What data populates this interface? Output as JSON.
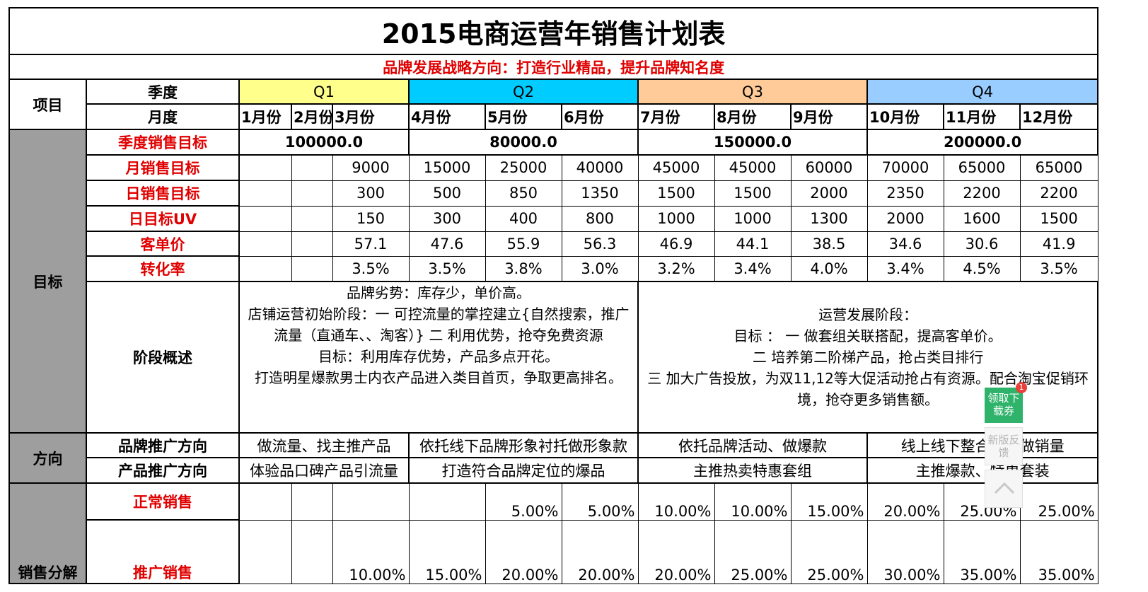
{
  "title": "2015电商运营年销售计划表",
  "strategy": "品牌发展战略方向：打造行业精品，提升品牌知名度",
  "header": {
    "item_label": "项目",
    "season_label": "季度",
    "month_label": "月度",
    "quarters": [
      "Q1",
      "Q2",
      "Q3",
      "Q4"
    ],
    "months": [
      "1月份",
      "2月份",
      "3月份",
      "4月份",
      "5月份",
      "6月份",
      "7月份",
      "8月份",
      "9月份",
      "10月份",
      "11月份",
      "12月份"
    ]
  },
  "colors": {
    "q1": "#ffff8c",
    "q2": "#00ccff",
    "q3": "#ffcc99",
    "q4": "#99ccff",
    "accent_red": "#e00000",
    "side_grey": "#9e9e9e"
  },
  "sections": {
    "target": "目标",
    "direction": "方向",
    "sales_breakdown": "销售分解"
  },
  "quarter_targets": {
    "label": "季度销售目标",
    "values": [
      "100000.0",
      "80000.0",
      "150000.0",
      "200000.0"
    ]
  },
  "rows": {
    "monthly_target": {
      "label": "月销售目标",
      "values": [
        "",
        "",
        "9000",
        "15000",
        "25000",
        "40000",
        "45000",
        "45000",
        "60000",
        "70000",
        "65000",
        "65000"
      ]
    },
    "daily_target": {
      "label": "日销售目标",
      "values": [
        "",
        "",
        "300",
        "500",
        "850",
        "1350",
        "1500",
        "1500",
        "2000",
        "2350",
        "2200",
        "2200"
      ]
    },
    "daily_uv": {
      "label": "日目标UV",
      "values": [
        "",
        "",
        "150",
        "300",
        "400",
        "800",
        "1000",
        "1000",
        "1300",
        "2000",
        "1600",
        "1500"
      ]
    },
    "unit_price": {
      "label": "客单价",
      "values": [
        "",
        "",
        "57.1",
        "47.6",
        "55.9",
        "56.3",
        "46.9",
        "44.1",
        "38.5",
        "34.6",
        "30.6",
        "41.9"
      ]
    },
    "conversion": {
      "label": "转化率",
      "values": [
        "",
        "",
        "3.5%",
        "3.5%",
        "3.8%",
        "3.0%",
        "3.2%",
        "3.4%",
        "4.0%",
        "3.4%",
        "4.5%",
        "3.5%"
      ]
    }
  },
  "stage": {
    "label": "阶段概述",
    "left": [
      "品牌劣势：库存少，单价高。",
      "店铺运营初始阶段：一 可控流量的掌控建立{自然搜索，推广流量（直通车、、淘客）} 二 利用优势，抢夺免费资源",
      "目标：利用库存优势，产品多点开花。",
      "打造明星爆款男士内衣产品进入类目首页，争取更高排名。"
    ],
    "right": [
      "运营发展阶段：",
      "目标 ： 一 做套组关联搭配，提高客单价。",
      "二 培养第二阶梯产品，抢占类目排行",
      "三 加大广告投放，为双11,12等大促活动抢占有资源。配合淘宝促销环境，抢夺更多销售额。"
    ]
  },
  "brand_direction": {
    "label": "品牌推广方向",
    "values": [
      "做流量、找主推产品",
      "依托线下品牌形象衬托做形象款",
      "依托品牌活动、做爆款",
      "线上线下整合统一做销量"
    ]
  },
  "product_direction": {
    "label": "产品推广方向",
    "values": [
      "体验品口碑产品引流量",
      "打造符合品牌定位的爆品",
      "主推热卖特惠套组",
      "主推爆款、特惠套装"
    ]
  },
  "normal_sales": {
    "label": "正常销售",
    "values": [
      "",
      "",
      "",
      "",
      "5.00%",
      "5.00%",
      "10.00%",
      "10.00%",
      "15.00%",
      "20.00%",
      "25.00%",
      "25.00%"
    ]
  },
  "promo_sales": {
    "label": "推广销售",
    "values": [
      "",
      "",
      "10.00%",
      "15.00%",
      "20.00%",
      "20.00%",
      "20.00%",
      "25.00%",
      "25.00%",
      "30.00%",
      "35.00%",
      "35.00%"
    ]
  },
  "widget": {
    "coupon": "领取下载券",
    "badge": "1",
    "feedback": "新版反馈"
  }
}
